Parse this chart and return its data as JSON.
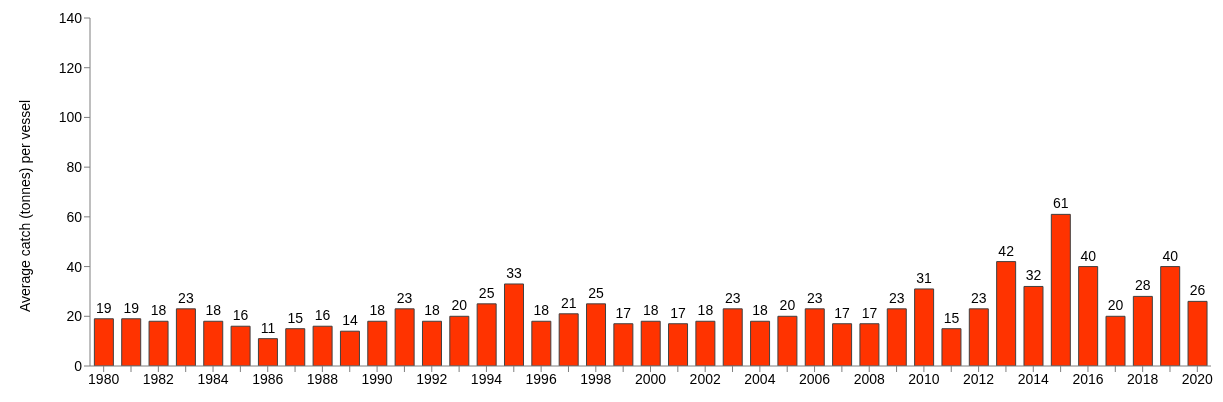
{
  "chart_data": {
    "type": "bar",
    "ylabel": "Average catch (tonnes) per vessel",
    "categories": [
      "1980",
      null,
      "1982",
      null,
      "1984",
      null,
      "1986",
      null,
      "1988",
      null,
      "1990",
      null,
      "1992",
      null,
      "1994",
      null,
      "1996",
      null,
      "1998",
      null,
      "2000",
      null,
      "2002",
      null,
      "2004",
      null,
      "2006",
      null,
      "2008",
      null,
      "2010",
      null,
      "2012",
      null,
      "2014",
      null,
      "2016",
      null,
      "2018",
      null,
      "2020"
    ],
    "values": [
      19,
      19,
      18,
      23,
      18,
      16,
      11,
      15,
      16,
      14,
      18,
      23,
      18,
      20,
      25,
      33,
      18,
      21,
      25,
      17,
      18,
      17,
      18,
      23,
      18,
      20,
      23,
      17,
      17,
      23,
      31,
      15,
      23,
      42,
      32,
      61,
      40,
      20,
      28,
      40,
      26
    ],
    "color": "#ff3300",
    "ylim": [
      0,
      140
    ],
    "yticks": [
      0,
      20,
      40,
      60,
      80,
      100,
      120,
      140
    ],
    "grid": false,
    "data_labels": true
  }
}
